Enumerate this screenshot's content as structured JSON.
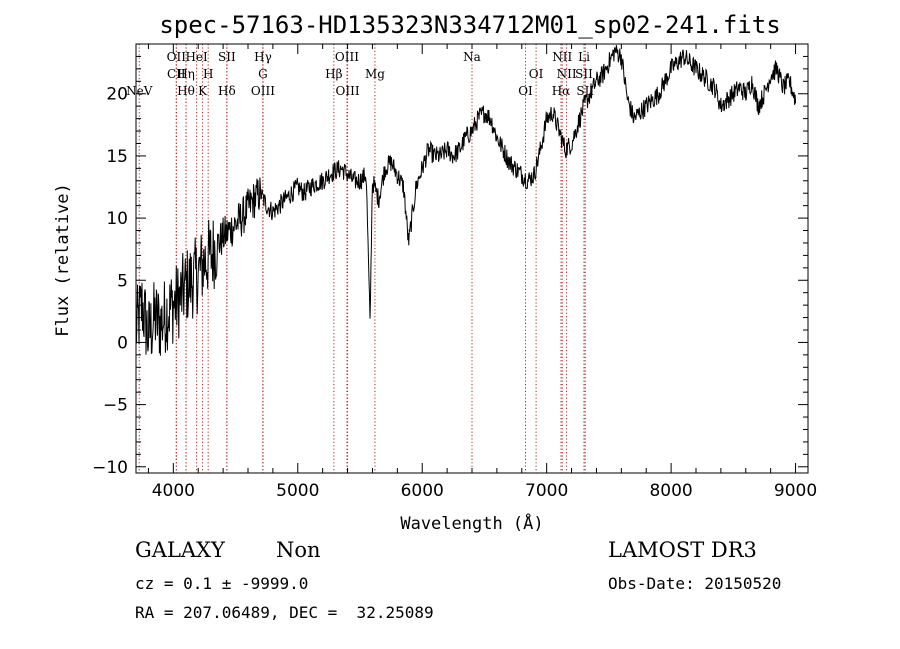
{
  "chart_data": {
    "type": "line",
    "title": "spec-57163-HD135323N334712M01_sp02-241.fits",
    "xlabel": "Wavelength (Å)",
    "ylabel": "Flux (relative)",
    "xlim": [
      3700,
      9100
    ],
    "ylim": [
      -10.5,
      24
    ],
    "xticks": [
      4000,
      5000,
      6000,
      7000,
      8000,
      9000
    ],
    "yticks": [
      -10,
      -5,
      0,
      5,
      10,
      15,
      20
    ],
    "grid": false,
    "line_color": "#000000",
    "marker_color": "#b22222",
    "spectral_lines": [
      {
        "label": "NeV",
        "wavelength": 3726,
        "row": 3
      },
      {
        "label": "OII",
        "wavelength": 4024,
        "row": 1
      },
      {
        "label": "CII",
        "wavelength": 4024,
        "row": 2
      },
      {
        "label": "Hθ",
        "wavelength": 4102,
        "row": 3
      },
      {
        "label": "Hη",
        "wavelength": 4102,
        "row": 2
      },
      {
        "label": "HeI",
        "wavelength": 4187,
        "row": 1
      },
      {
        "label": "K",
        "wavelength": 4235,
        "row": 3
      },
      {
        "label": "H",
        "wavelength": 4280,
        "row": 2
      },
      {
        "label": "SII",
        "wavelength": 4430,
        "row": 1
      },
      {
        "label": "Hδ",
        "wavelength": 4430,
        "row": 3
      },
      {
        "label": "Hγ",
        "wavelength": 4720,
        "row": 1
      },
      {
        "label": "G",
        "wavelength": 4720,
        "row": 2
      },
      {
        "label": "OIII",
        "wavelength": 4720,
        "row": 3
      },
      {
        "label": "Hβ",
        "wavelength": 5290,
        "row": 2
      },
      {
        "label": "OIII",
        "wavelength": 5395,
        "row": 1
      },
      {
        "label": "OIII",
        "wavelength": 5400,
        "row": 3
      },
      {
        "label": "Mg",
        "wavelength": 5620,
        "row": 2
      },
      {
        "label": "Na",
        "wavelength": 6400,
        "row": 1
      },
      {
        "label": "OI",
        "wavelength": 6830,
        "row": 3
      },
      {
        "label": "OI",
        "wavelength": 6915,
        "row": 2
      },
      {
        "label": "NII",
        "wavelength": 7125,
        "row": 1
      },
      {
        "label": "NII",
        "wavelength": 7160,
        "row": 2
      },
      {
        "label": "Hα",
        "wavelength": 7115,
        "row": 3
      },
      {
        "label": "Li",
        "wavelength": 7300,
        "row": 1
      },
      {
        "label": "SII",
        "wavelength": 7300,
        "row": 2
      },
      {
        "label": "SII",
        "wavelength": 7310,
        "row": 3
      }
    ],
    "series": [
      {
        "x": [
          3700,
          3750,
          3800,
          3850,
          3900,
          3950,
          4000,
          4050,
          4100,
          4150,
          4200,
          4250,
          4300,
          4350,
          4400,
          4450,
          4500,
          4550,
          4600,
          4650,
          4700,
          4750,
          4800,
          4850,
          4900,
          4950,
          5000,
          5050,
          5100,
          5150,
          5200,
          5250,
          5300,
          5350,
          5400,
          5450,
          5500,
          5550,
          5580,
          5600,
          5650,
          5700,
          5750,
          5800,
          5850,
          5890,
          5950,
          6000,
          6050,
          6100,
          6150,
          6200,
          6250,
          6300,
          6350,
          6400,
          6450,
          6500,
          6550,
          6600,
          6650,
          6700,
          6750,
          6800,
          6850,
          6900,
          6950,
          7000,
          7050,
          7100,
          7150,
          7200,
          7250,
          7300,
          7350,
          7400,
          7450,
          7500,
          7550,
          7600,
          7650,
          7700,
          7750,
          7800,
          7850,
          7900,
          7950,
          8000,
          8050,
          8100,
          8150,
          8200,
          8250,
          8300,
          8350,
          8400,
          8450,
          8500,
          8550,
          8600,
          8650,
          8700,
          8750,
          8800,
          8850,
          8900,
          8950,
          9000
        ],
        "y": [
          1.0,
          3.0,
          0.5,
          2.0,
          1.5,
          2.5,
          3.0,
          3.5,
          4.5,
          5.0,
          5.5,
          6.5,
          7.0,
          7.8,
          8.5,
          9.0,
          9.5,
          10.0,
          10.8,
          11.5,
          12.0,
          11.0,
          10.5,
          11.0,
          11.5,
          12.0,
          12.5,
          12.0,
          12.5,
          12.8,
          13.0,
          13.5,
          13.8,
          14.0,
          13.5,
          13.0,
          13.0,
          13.5,
          1.5,
          13.0,
          11.5,
          14.0,
          14.5,
          13.5,
          12.5,
          8.0,
          12.5,
          14.0,
          15.5,
          15.0,
          15.0,
          15.5,
          15.0,
          15.5,
          16.5,
          17.0,
          18.0,
          18.5,
          18.0,
          16.5,
          15.5,
          14.5,
          14.0,
          13.5,
          13.0,
          13.5,
          15.5,
          18.0,
          18.5,
          17.0,
          15.5,
          16.0,
          17.5,
          19.0,
          20.0,
          21.0,
          21.5,
          22.5,
          23.5,
          23.0,
          19.5,
          18.0,
          18.5,
          19.0,
          19.5,
          20.0,
          21.0,
          22.0,
          22.5,
          23.0,
          22.5,
          22.0,
          21.5,
          21.0,
          20.5,
          19.0,
          19.5,
          20.0,
          20.5,
          20.0,
          21.0,
          19.0,
          20.0,
          21.5,
          22.0,
          20.5,
          21.0,
          19.5
        ]
      }
    ]
  },
  "info": {
    "class": "GALAXY",
    "subclass": "Non",
    "cz": "cz = 0.1 ± -9999.0",
    "coords": "RA = 207.06489, DEC =  32.25089",
    "survey": "LAMOST DR3",
    "obs_date": "Obs-Date: 20150520"
  }
}
